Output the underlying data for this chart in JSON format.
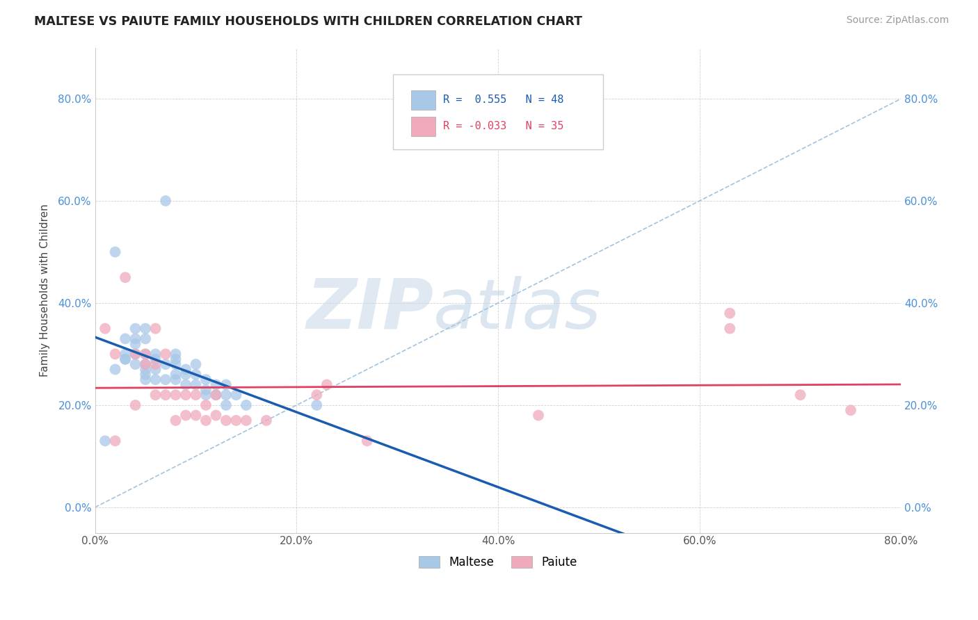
{
  "title": "MALTESE VS PAIUTE FAMILY HOUSEHOLDS WITH CHILDREN CORRELATION CHART",
  "source_text": "Source: ZipAtlas.com",
  "ylabel": "Family Households with Children",
  "xlim": [
    0.0,
    0.8
  ],
  "ylim": [
    -0.05,
    0.9
  ],
  "xticks": [
    0.0,
    0.2,
    0.4,
    0.6,
    0.8
  ],
  "yticks": [
    0.0,
    0.2,
    0.4,
    0.6,
    0.8
  ],
  "xtick_labels": [
    "0.0%",
    "20.0%",
    "40.0%",
    "60.0%",
    "80.0%"
  ],
  "ytick_labels": [
    "0.0%",
    "20.0%",
    "40.0%",
    "60.0%",
    "80.0%"
  ],
  "maltese_r": 0.555,
  "maltese_n": 48,
  "paiute_r": -0.033,
  "paiute_n": 35,
  "maltese_color": "#a8c8e8",
  "paiute_color": "#f0aabb",
  "maltese_line_color": "#1a5cb0",
  "paiute_line_color": "#e04060",
  "maltese_x": [
    0.01,
    0.02,
    0.02,
    0.03,
    0.03,
    0.03,
    0.03,
    0.04,
    0.04,
    0.04,
    0.04,
    0.04,
    0.05,
    0.05,
    0.05,
    0.05,
    0.05,
    0.05,
    0.05,
    0.06,
    0.06,
    0.06,
    0.06,
    0.07,
    0.07,
    0.07,
    0.08,
    0.08,
    0.08,
    0.08,
    0.08,
    0.09,
    0.09,
    0.09,
    0.1,
    0.1,
    0.1,
    0.11,
    0.11,
    0.11,
    0.12,
    0.12,
    0.13,
    0.13,
    0.13,
    0.14,
    0.15,
    0.22
  ],
  "maltese_y": [
    0.13,
    0.5,
    0.27,
    0.33,
    0.3,
    0.29,
    0.29,
    0.33,
    0.35,
    0.32,
    0.3,
    0.28,
    0.35,
    0.33,
    0.3,
    0.28,
    0.27,
    0.26,
    0.25,
    0.3,
    0.29,
    0.27,
    0.25,
    0.6,
    0.28,
    0.25,
    0.3,
    0.29,
    0.28,
    0.26,
    0.25,
    0.27,
    0.26,
    0.24,
    0.28,
    0.26,
    0.24,
    0.25,
    0.23,
    0.22,
    0.24,
    0.22,
    0.24,
    0.22,
    0.2,
    0.22,
    0.2,
    0.2
  ],
  "paiute_x": [
    0.01,
    0.02,
    0.02,
    0.03,
    0.04,
    0.04,
    0.05,
    0.05,
    0.06,
    0.06,
    0.06,
    0.07,
    0.07,
    0.08,
    0.08,
    0.09,
    0.09,
    0.1,
    0.1,
    0.11,
    0.11,
    0.12,
    0.12,
    0.13,
    0.14,
    0.15,
    0.17,
    0.22,
    0.23,
    0.27,
    0.44,
    0.63,
    0.63,
    0.7,
    0.75
  ],
  "paiute_y": [
    0.35,
    0.3,
    0.13,
    0.45,
    0.3,
    0.2,
    0.3,
    0.28,
    0.35,
    0.28,
    0.22,
    0.3,
    0.22,
    0.22,
    0.17,
    0.22,
    0.18,
    0.22,
    0.18,
    0.2,
    0.17,
    0.22,
    0.18,
    0.17,
    0.17,
    0.17,
    0.17,
    0.22,
    0.24,
    0.13,
    0.18,
    0.38,
    0.35,
    0.22,
    0.19
  ]
}
